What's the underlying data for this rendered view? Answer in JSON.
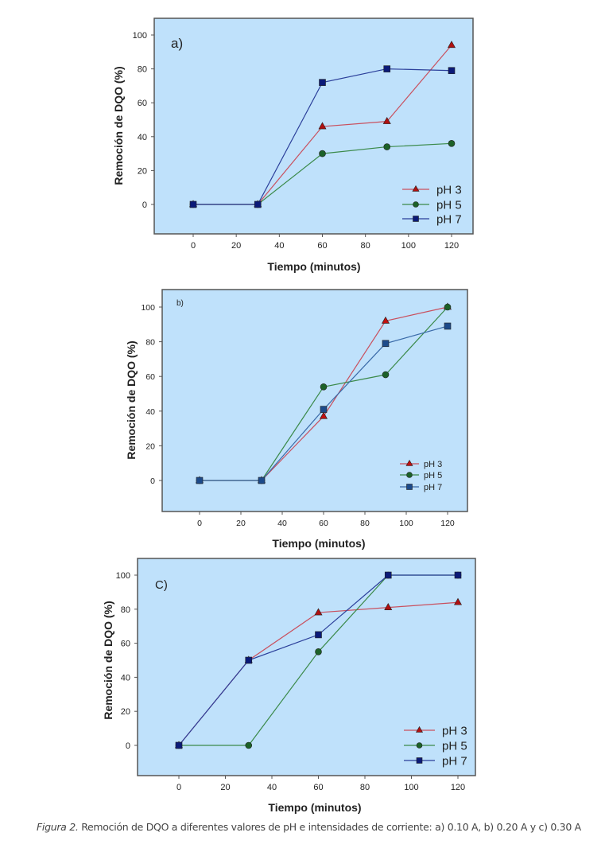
{
  "chart_data": [
    {
      "type": "line",
      "panel_label": "a)",
      "xlabel": "Tiempo (minutos)",
      "ylabel": "Remoción de DQO (%)",
      "x": [
        0,
        30,
        60,
        90,
        120
      ],
      "xticks": [
        "0",
        "20",
        "40",
        "60",
        "80",
        "100",
        "120"
      ],
      "yticks": [
        "0",
        "20",
        "40",
        "60",
        "80",
        "100"
      ],
      "xlim": [
        -12,
        126
      ],
      "ylim": [
        -18,
        110
      ],
      "legend_position": "bottom-right",
      "series": [
        {
          "name": "pH 3",
          "marker": "triangle",
          "color": "#c9505e",
          "marker_color": "#b01010",
          "values": [
            0,
            0,
            46,
            49,
            94
          ]
        },
        {
          "name": "pH 5",
          "marker": "circle",
          "color": "#3b8a4a",
          "marker_color": "#1c6128",
          "values": [
            0,
            0,
            30,
            34,
            36
          ]
        },
        {
          "name": "pH 7",
          "marker": "square",
          "color": "#2b3f9a",
          "marker_color": "#0b1a78",
          "values": [
            0,
            0,
            72,
            80,
            79
          ]
        }
      ]
    },
    {
      "type": "line",
      "panel_label": "b)",
      "xlabel": "Tiempo (minutos)",
      "ylabel": "Remoción de DQO (%)",
      "x": [
        0,
        30,
        60,
        90,
        120
      ],
      "xticks": [
        "0",
        "20",
        "40",
        "60",
        "80",
        "100",
        "120"
      ],
      "yticks": [
        "0",
        "20",
        "40",
        "60",
        "80",
        "100"
      ],
      "xlim": [
        -12,
        126
      ],
      "ylim": [
        -18,
        110
      ],
      "legend_position": "bottom-right",
      "series": [
        {
          "name": "pH 3",
          "marker": "triangle",
          "color": "#c9505e",
          "marker_color": "#c01010",
          "values": [
            0,
            0,
            37,
            92,
            100
          ]
        },
        {
          "name": "pH 5",
          "marker": "circle",
          "color": "#3b8a4a",
          "marker_color": "#1c6128",
          "values": [
            0,
            0,
            54,
            61,
            100
          ]
        },
        {
          "name": "pH 7",
          "marker": "square",
          "color": "#3a6aa8",
          "marker_color": "#1c4a8a",
          "values": [
            0,
            0,
            41,
            79,
            89
          ]
        }
      ]
    },
    {
      "type": "line",
      "panel_label": "C)",
      "xlabel": "Tiempo (minutos)",
      "ylabel": "Remoción de DQO (%)",
      "x": [
        0,
        30,
        60,
        90,
        120
      ],
      "xticks": [
        "0",
        "20",
        "40",
        "60",
        "80",
        "100",
        "120"
      ],
      "yticks": [
        "0",
        "20",
        "40",
        "60",
        "80",
        "100"
      ],
      "xlim": [
        -12,
        126
      ],
      "ylim": [
        -18,
        110
      ],
      "legend_position": "bottom-right",
      "series": [
        {
          "name": "pH 3",
          "marker": "triangle",
          "color": "#c9505e",
          "marker_color": "#b01010",
          "values": [
            0,
            50,
            78,
            81,
            84
          ]
        },
        {
          "name": "pH 5",
          "marker": "circle",
          "color": "#3b8a4a",
          "marker_color": "#1c6128",
          "values": [
            0,
            0,
            55,
            100,
            100
          ]
        },
        {
          "name": "pH 7",
          "marker": "square",
          "color": "#2b3f9a",
          "marker_color": "#0b1a78",
          "values": [
            0,
            50,
            65,
            100,
            100
          ]
        }
      ]
    }
  ],
  "caption": {
    "label": "Figura 2.",
    "text": " Remoción de DQO a diferentes valores de pH e intensidades de corriente: a) 0.10 A, b) 0.20 A y c) 0.30 A"
  },
  "colors": {
    "plot_bg": "#bfe1fb",
    "frame": "#555555",
    "text": "#222222"
  }
}
